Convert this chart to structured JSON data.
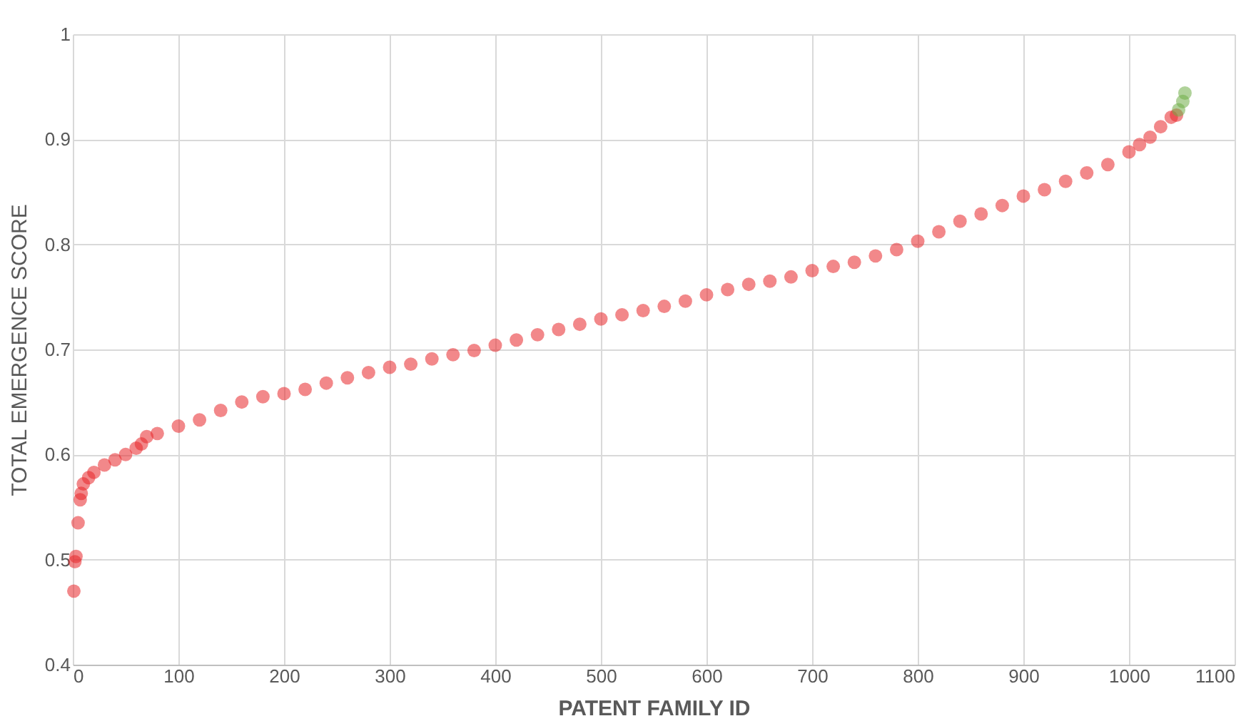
{
  "chart_data": {
    "type": "scatter",
    "xlabel": "PATENT FAMILY ID",
    "ylabel": "TOTAL EMERGENCE SCORE",
    "xlim": [
      0,
      1100
    ],
    "xticks": [
      0,
      100,
      200,
      300,
      400,
      500,
      600,
      700,
      800,
      900,
      1000,
      1100
    ],
    "ylim": [
      0.4,
      1
    ],
    "yticks": [
      0.4,
      0.5,
      0.6,
      0.7,
      0.8,
      0.9,
      1
    ],
    "grid": true,
    "marker": "circle",
    "legend": false,
    "series": [
      {
        "color": "#e8262a",
        "x": [
          1,
          2,
          3,
          5,
          7,
          8,
          10,
          15,
          20,
          30,
          40,
          50,
          60,
          65,
          70,
          80,
          100,
          120,
          140,
          160,
          180,
          200,
          220,
          240,
          260,
          280,
          300,
          320,
          340,
          360,
          380,
          400,
          420,
          440,
          460,
          480,
          500,
          520,
          540,
          560,
          580,
          600,
          620,
          640,
          660,
          680,
          700,
          720,
          740,
          760,
          780,
          800,
          820,
          840,
          860,
          880,
          900,
          920,
          940,
          960,
          980,
          1000,
          1010,
          1020,
          1030,
          1040,
          1045
        ],
        "values": [
          0.47,
          0.498,
          0.503,
          0.535,
          0.557,
          0.563,
          0.572,
          0.578,
          0.583,
          0.59,
          0.595,
          0.6,
          0.606,
          0.61,
          0.617,
          0.62,
          0.627,
          0.633,
          0.642,
          0.65,
          0.655,
          0.658,
          0.662,
          0.668,
          0.673,
          0.678,
          0.683,
          0.686,
          0.691,
          0.695,
          0.699,
          0.704,
          0.709,
          0.714,
          0.719,
          0.724,
          0.729,
          0.733,
          0.737,
          0.741,
          0.746,
          0.752,
          0.757,
          0.762,
          0.765,
          0.769,
          0.775,
          0.779,
          0.783,
          0.789,
          0.795,
          0.803,
          0.812,
          0.822,
          0.829,
          0.837,
          0.846,
          0.852,
          0.86,
          0.868,
          0.876,
          0.888,
          0.895,
          0.902,
          0.912,
          0.921,
          0.923
        ]
      },
      {
        "color": "#70ad47",
        "x": [
          1047,
          1051,
          1053
        ],
        "values": [
          0.928,
          0.936,
          0.944
        ]
      }
    ]
  }
}
